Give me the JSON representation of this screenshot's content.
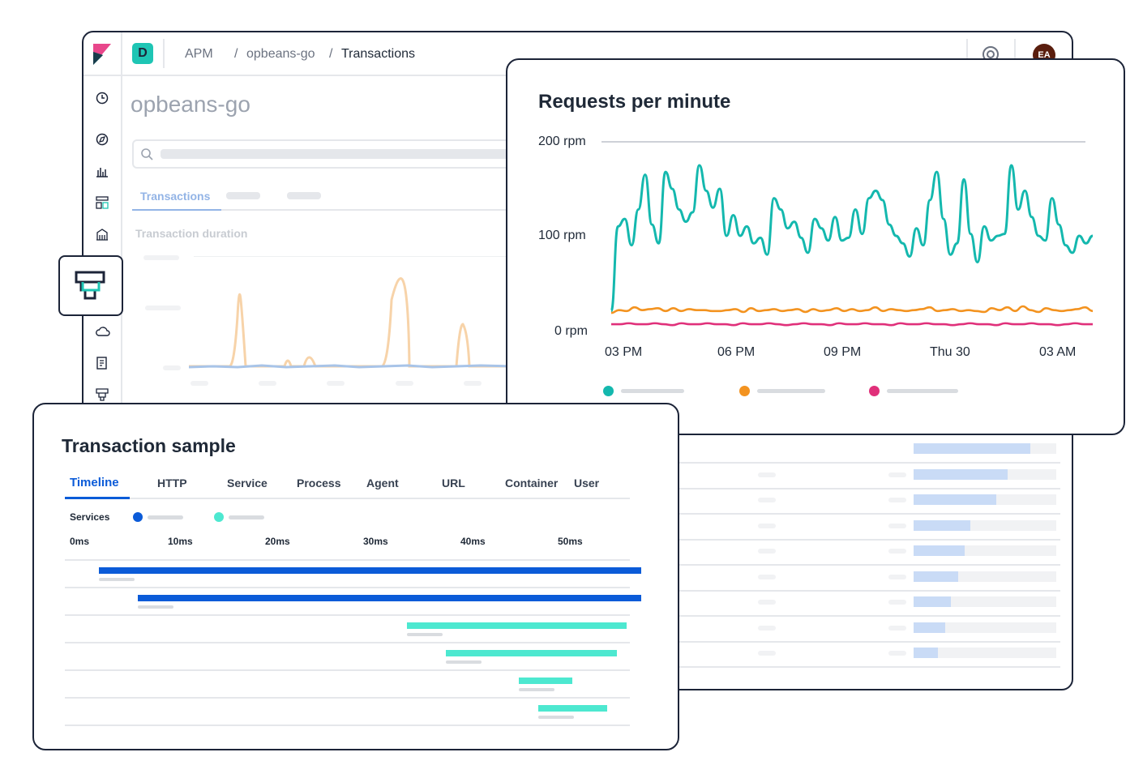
{
  "app": {
    "logo_letter": "D",
    "breadcrumb": [
      "APM",
      "opbeans-go",
      "Transactions"
    ],
    "service_title": "opbeans-go",
    "tabs": [
      "Transactions"
    ],
    "chart_label": "Transaction duration",
    "avatar_initials": "EA",
    "icons": [
      "kibana-logo-icon",
      "clock-icon",
      "compass-icon",
      "chart-icon",
      "dashboard-icon",
      "building-icon",
      "apm-icon",
      "cloud-icon",
      "document-icon",
      "apm-small-icon",
      "help-icon"
    ],
    "colors": {
      "accent": "#1ec5b4",
      "peach": "#f7d3a9",
      "lightblue": "#a8c4e8"
    }
  },
  "rpm_card": {
    "title": "Requests per minute",
    "legend_colors": [
      "#14b8ae",
      "#f39320",
      "#e0307a"
    ]
  },
  "chart_data": {
    "type": "line",
    "title": "Requests per minute",
    "y_ticks": [
      "200 rpm",
      "100 rpm",
      "0 rpm"
    ],
    "x_ticks": [
      "03 PM",
      "06 PM",
      "09 PM",
      "Thu 30",
      "03 AM"
    ],
    "ylim": [
      0,
      200
    ],
    "grid": true,
    "series": [
      {
        "color": "#14b8ae",
        "values": [
          20,
          110,
          118,
          90,
          128,
          165,
          112,
          92,
          168,
          150,
          128,
          115,
          125,
          175,
          148,
          130,
          150,
          100,
          122,
          100,
          110,
          92,
          98,
          80,
          140,
          128,
          108,
          115,
          98,
          82,
          118,
          108,
          95,
          120,
          95,
          98,
          128,
          102,
          140,
          148,
          138,
          112,
          100,
          92,
          78,
          108,
          90,
          138,
          168,
          118,
          80,
          92,
          160,
          102,
          72,
          110,
          95,
          100,
          102,
          175,
          128,
          148,
          120,
          100,
          95,
          140,
          112,
          90,
          82,
          100,
          92,
          100
        ]
      },
      {
        "color": "#f39320",
        "values": [
          18,
          21,
          20,
          24,
          21,
          22,
          23,
          20,
          23,
          20,
          22,
          21,
          21,
          20,
          20,
          21,
          22,
          19,
          23,
          20,
          21,
          22,
          20,
          21,
          22,
          19,
          22,
          20,
          21,
          23,
          20,
          22,
          20,
          21,
          24,
          20,
          22,
          21,
          20,
          21,
          22,
          24,
          20,
          21,
          22,
          20,
          21,
          20,
          19,
          23,
          21,
          24,
          20,
          25,
          21,
          19,
          23,
          21,
          20,
          21,
          22,
          24,
          20
        ]
      },
      {
        "color": "#e0307a",
        "values": [
          6,
          6,
          7,
          6,
          6,
          7,
          6,
          5,
          7,
          6,
          6,
          7,
          6,
          6,
          5,
          7,
          6,
          6,
          7,
          6,
          5,
          6,
          7,
          6,
          6,
          5,
          7,
          6,
          6,
          7,
          6,
          6,
          5,
          7,
          6,
          6,
          7,
          6,
          6,
          5,
          6,
          7,
          6,
          6,
          5,
          7,
          6,
          6,
          7,
          6,
          6,
          5,
          6,
          7,
          6,
          6
        ]
      }
    ]
  },
  "sample_card": {
    "title": "Transaction sample",
    "tabs": [
      "Timeline",
      "HTTP",
      "Service",
      "Process",
      "Agent",
      "URL",
      "Container",
      "User"
    ],
    "services_label": "Services",
    "services_colors": [
      "#0b5bd8",
      "#4de8d0"
    ],
    "ticks": [
      "0ms",
      "10ms",
      "20ms",
      "30ms",
      "40ms",
      "50ms"
    ],
    "spans": [
      {
        "service": 0,
        "start_ms": 1.5,
        "end_ms": 57.0
      },
      {
        "service": 0,
        "start_ms": 5.5,
        "end_ms": 57.0
      },
      {
        "service": 1,
        "start_ms": 33.0,
        "end_ms": 55.5
      },
      {
        "service": 1,
        "start_ms": 37.0,
        "end_ms": 54.5
      },
      {
        "service": 1,
        "start_ms": 44.5,
        "end_ms": 50.0
      },
      {
        "service": 1,
        "start_ms": 46.5,
        "end_ms": 53.5
      }
    ]
  },
  "behind_list": {
    "fill_fractions": [
      0.82,
      0.66,
      0.58,
      0.4,
      0.36,
      0.31,
      0.26,
      0.22,
      0.17
    ]
  }
}
